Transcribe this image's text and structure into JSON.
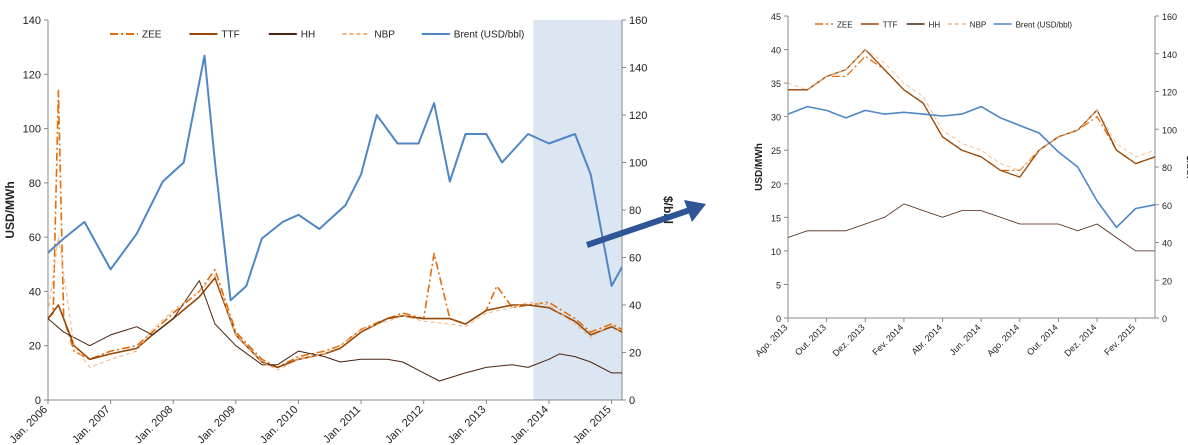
{
  "colors": {
    "zee": "#e46c0a",
    "ttf": "#974706",
    "hh": "#4a2410",
    "nbp": "#f7b27c",
    "brent": "#4f86c6",
    "highlight": "#dce6f2",
    "arrow": "#2f5597"
  },
  "chart_data": [
    {
      "type": "line",
      "ylabel": "USD/MWh",
      "y2label": "$/bbl",
      "ylim": [
        0,
        140
      ],
      "y2lim": [
        0,
        160
      ],
      "yticks": [
        "0",
        "20",
        "40",
        "60",
        "80",
        "100",
        "120",
        "140"
      ],
      "y2ticks": [
        "0",
        "20",
        "40",
        "60",
        "80",
        "100",
        "120",
        "140",
        "160"
      ],
      "xlim": [
        "2006-01",
        "2015-03"
      ],
      "xticks": [
        "Jan. 2006",
        "Jan. 2007",
        "Jan. 2008",
        "Jan. 2009",
        "Jan. 2010",
        "Jan. 2011",
        "Jan. 2012",
        "Jan. 2013",
        "Jan. 2014",
        "Jan. 2015"
      ],
      "highlight_range": [
        "2013-10",
        "2015-03"
      ],
      "legend_position": "top",
      "series": [
        {
          "name": "ZEE",
          "axis": "left",
          "dash": "dash-dot",
          "x": [
            "2006-01",
            "2006-02",
            "2006-03",
            "2006-04",
            "2006-06",
            "2006-09",
            "2007-01",
            "2007-06",
            "2007-09",
            "2008-01",
            "2008-06",
            "2008-09",
            "2009-01",
            "2009-06",
            "2009-09",
            "2010-01",
            "2010-06",
            "2010-09",
            "2011-01",
            "2011-06",
            "2011-09",
            "2012-01",
            "2012-03",
            "2012-06",
            "2012-09",
            "2013-01",
            "2013-03",
            "2013-06",
            "2013-09",
            "2014-01",
            "2014-06",
            "2014-09",
            "2015-01",
            "2015-03"
          ],
          "y": [
            30,
            32,
            114,
            30,
            18,
            15,
            18,
            20,
            25,
            32,
            40,
            48,
            25,
            15,
            12,
            16,
            18,
            20,
            26,
            30,
            32,
            30,
            54,
            30,
            28,
            33,
            42,
            34,
            35,
            36,
            30,
            25,
            28,
            26
          ]
        },
        {
          "name": "TTF",
          "axis": "left",
          "dash": "solid",
          "x": [
            "2006-01",
            "2006-03",
            "2006-06",
            "2006-09",
            "2007-01",
            "2007-06",
            "2007-09",
            "2008-01",
            "2008-06",
            "2008-09",
            "2009-01",
            "2009-06",
            "2009-09",
            "2010-01",
            "2010-06",
            "2010-09",
            "2011-01",
            "2011-06",
            "2011-09",
            "2012-01",
            "2012-06",
            "2012-09",
            "2013-01",
            "2013-06",
            "2013-09",
            "2014-01",
            "2014-06",
            "2014-09",
            "2015-01",
            "2015-03"
          ],
          "y": [
            30,
            35,
            20,
            15,
            17,
            19,
            24,
            30,
            38,
            45,
            24,
            14,
            12,
            15,
            17,
            19,
            25,
            30,
            31,
            30,
            30,
            28,
            33,
            35,
            35,
            34,
            29,
            24,
            27,
            25
          ]
        },
        {
          "name": "HH",
          "axis": "left",
          "dash": "solid",
          "x": [
            "2006-01",
            "2006-04",
            "2006-09",
            "2007-01",
            "2007-06",
            "2007-09",
            "2008-01",
            "2008-06",
            "2008-09",
            "2009-01",
            "2009-06",
            "2009-09",
            "2010-01",
            "2010-06",
            "2010-09",
            "2011-01",
            "2011-06",
            "2011-09",
            "2012-01",
            "2012-04",
            "2012-09",
            "2013-01",
            "2013-06",
            "2013-09",
            "2014-01",
            "2014-03",
            "2014-06",
            "2014-09",
            "2015-01",
            "2015-03"
          ],
          "y": [
            30,
            25,
            20,
            24,
            27,
            24,
            30,
            44,
            28,
            20,
            13,
            13,
            18,
            16,
            14,
            15,
            15,
            14,
            10,
            7,
            10,
            12,
            13,
            12,
            15,
            17,
            16,
            14,
            10,
            10
          ]
        },
        {
          "name": "NBP",
          "axis": "left",
          "dash": "dashed",
          "x": [
            "2006-01",
            "2006-03",
            "2006-06",
            "2006-09",
            "2007-01",
            "2007-06",
            "2007-09",
            "2008-01",
            "2008-06",
            "2008-09",
            "2009-01",
            "2009-06",
            "2009-09",
            "2010-01",
            "2010-06",
            "2010-09",
            "2011-01",
            "2011-06",
            "2011-09",
            "2012-01",
            "2012-06",
            "2012-09",
            "2013-01",
            "2013-06",
            "2013-09",
            "2014-01",
            "2014-06",
            "2014-09",
            "2015-01",
            "2015-03"
          ],
          "y": [
            32,
            60,
            20,
            12,
            15,
            18,
            26,
            33,
            40,
            46,
            24,
            14,
            11,
            15,
            17,
            20,
            26,
            29,
            31,
            29,
            28,
            27,
            32,
            34,
            36,
            35,
            28,
            23,
            28,
            24
          ]
        },
        {
          "name": "Brent (USD/bbl)",
          "axis": "right",
          "dash": "solid",
          "x": [
            "2006-01",
            "2006-04",
            "2006-08",
            "2007-01",
            "2007-06",
            "2007-11",
            "2008-03",
            "2008-07",
            "2008-09",
            "2008-12",
            "2009-03",
            "2009-06",
            "2009-10",
            "2010-01",
            "2010-05",
            "2010-10",
            "2011-01",
            "2011-04",
            "2011-08",
            "2011-12",
            "2012-03",
            "2012-06",
            "2012-09",
            "2013-01",
            "2013-04",
            "2013-09",
            "2014-01",
            "2014-06",
            "2014-09",
            "2014-12",
            "2015-01",
            "2015-03"
          ],
          "y": [
            62,
            68,
            75,
            55,
            70,
            92,
            100,
            145,
            100,
            42,
            48,
            68,
            75,
            78,
            72,
            82,
            95,
            120,
            108,
            108,
            125,
            92,
            112,
            112,
            100,
            112,
            108,
            112,
            95,
            60,
            48,
            56
          ]
        }
      ]
    },
    {
      "type": "line",
      "ylabel": "USD/MWh",
      "y2label": "$/bbl",
      "ylim": [
        0,
        45
      ],
      "y2lim": [
        0,
        160
      ],
      "yticks": [
        "0",
        "5",
        "10",
        "15",
        "20",
        "25",
        "30",
        "35",
        "40",
        "45"
      ],
      "y2ticks": [
        "0",
        "20",
        "40",
        "60",
        "80",
        "100",
        "120",
        "140",
        "160"
      ],
      "xlim": [
        "2013-08",
        "2015-03"
      ],
      "xticks": [
        "Ago. 2013",
        "Out. 2013",
        "Dez. 2013",
        "Fev. 2014",
        "Abr. 2014",
        "Jun. 2014",
        "Ago. 2014",
        "Out. 2014",
        "Dez. 2014",
        "Fev. 2015"
      ],
      "legend_position": "top",
      "series": [
        {
          "name": "ZEE",
          "axis": "left",
          "dash": "dash-dot",
          "x": [
            "2013-08",
            "2013-09",
            "2013-10",
            "2013-11",
            "2013-12",
            "2014-01",
            "2014-02",
            "2014-03",
            "2014-04",
            "2014-05",
            "2014-06",
            "2014-07",
            "2014-08",
            "2014-09",
            "2014-10",
            "2014-11",
            "2014-12",
            "2015-01",
            "2015-02",
            "2015-03"
          ],
          "y": [
            34,
            34,
            36,
            36,
            39,
            37,
            34,
            32,
            27,
            25,
            24,
            22,
            22,
            25,
            27,
            28,
            30,
            25,
            23,
            24
          ]
        },
        {
          "name": "TTF",
          "axis": "left",
          "dash": "solid",
          "x": [
            "2013-08",
            "2013-09",
            "2013-10",
            "2013-11",
            "2013-12",
            "2014-01",
            "2014-02",
            "2014-03",
            "2014-04",
            "2014-05",
            "2014-06",
            "2014-07",
            "2014-08",
            "2014-09",
            "2014-10",
            "2014-11",
            "2014-12",
            "2015-01",
            "2015-02",
            "2015-03"
          ],
          "y": [
            34,
            34,
            36,
            37,
            40,
            37,
            34,
            32,
            27,
            25,
            24,
            22,
            21,
            25,
            27,
            28,
            31,
            25,
            23,
            24
          ]
        },
        {
          "name": "HH",
          "axis": "left",
          "dash": "solid",
          "x": [
            "2013-08",
            "2013-09",
            "2013-10",
            "2013-11",
            "2013-12",
            "2014-01",
            "2014-02",
            "2014-03",
            "2014-04",
            "2014-05",
            "2014-06",
            "2014-07",
            "2014-08",
            "2014-09",
            "2014-10",
            "2014-11",
            "2014-12",
            "2015-01",
            "2015-02",
            "2015-03"
          ],
          "y": [
            12,
            13,
            13,
            13,
            14,
            15,
            17,
            16,
            15,
            16,
            16,
            15,
            14,
            14,
            14,
            13,
            14,
            12,
            10,
            10
          ]
        },
        {
          "name": "NBP",
          "axis": "left",
          "dash": "dashed",
          "x": [
            "2013-08",
            "2013-09",
            "2013-10",
            "2013-11",
            "2013-12",
            "2014-01",
            "2014-02",
            "2014-03",
            "2014-04",
            "2014-05",
            "2014-06",
            "2014-07",
            "2014-08",
            "2014-09",
            "2014-10",
            "2014-11",
            "2014-12",
            "2015-01",
            "2015-02",
            "2015-03"
          ],
          "y": [
            35,
            34,
            36,
            37,
            40,
            38,
            35,
            33,
            28,
            26,
            25,
            23,
            22,
            25,
            27,
            28,
            31,
            26,
            24,
            25
          ]
        },
        {
          "name": "Brent (USD/bbl)",
          "axis": "right",
          "dash": "solid",
          "x": [
            "2013-08",
            "2013-09",
            "2013-10",
            "2013-11",
            "2013-12",
            "2014-01",
            "2014-02",
            "2014-03",
            "2014-04",
            "2014-05",
            "2014-06",
            "2014-07",
            "2014-08",
            "2014-09",
            "2014-10",
            "2014-11",
            "2014-12",
            "2015-01",
            "2015-02",
            "2015-03"
          ],
          "y": [
            108,
            112,
            110,
            106,
            110,
            108,
            109,
            108,
            107,
            108,
            112,
            106,
            102,
            98,
            88,
            80,
            62,
            48,
            58,
            60
          ]
        }
      ]
    }
  ]
}
